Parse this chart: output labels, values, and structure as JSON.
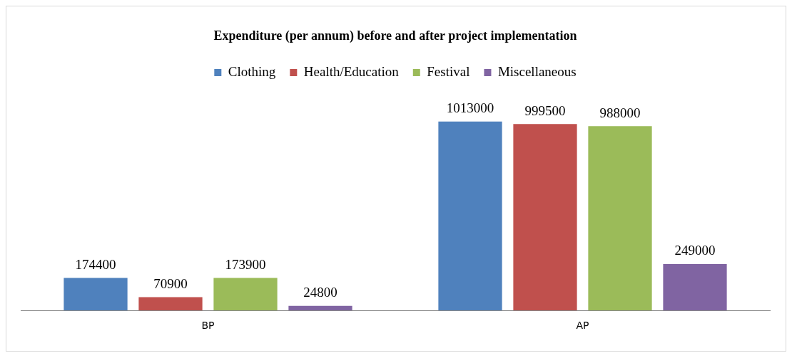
{
  "chart_data": {
    "type": "bar",
    "title": "Expenditure (per annum) before and after project implementation",
    "categories": [
      "BP",
      "AP"
    ],
    "series": [
      {
        "name": "Clothing",
        "color": "#4f81bd",
        "values": [
          174400,
          1013000
        ]
      },
      {
        "name": "Health/Education",
        "color": "#c0504d",
        "values": [
          70900,
          999500
        ]
      },
      {
        "name": "Festival",
        "color": "#9bbb59",
        "values": [
          173900,
          988000
        ]
      },
      {
        "name": "Miscellaneous",
        "color": "#8064a2",
        "values": [
          24800,
          249000
        ]
      }
    ],
    "data_labels": true,
    "legend": "top",
    "grid": false,
    "tick_labels": "x"
  }
}
